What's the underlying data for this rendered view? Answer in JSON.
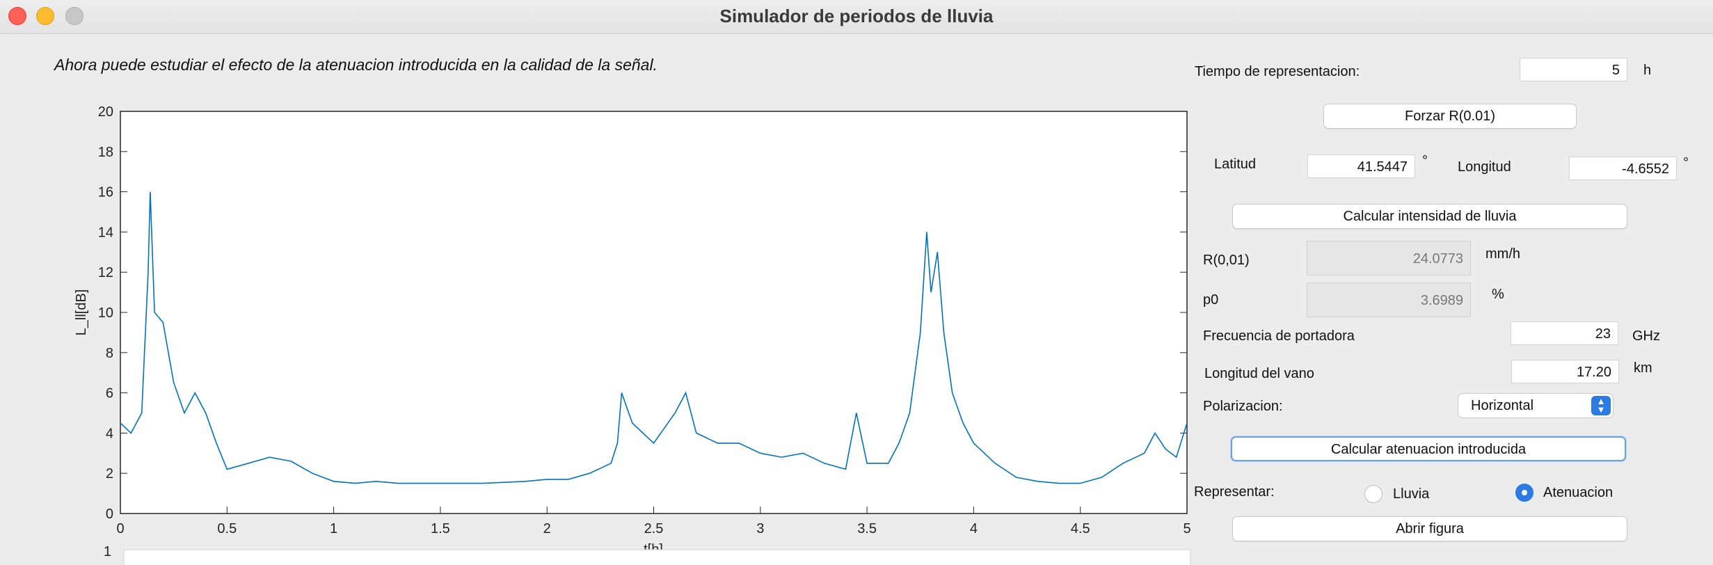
{
  "window": {
    "title": "Simulador de periodos de lluvia"
  },
  "instruction": "Ahora puede estudiar el efecto de la atenuacion introducida en la calidad de la señal.",
  "panel": {
    "tiempo": {
      "label": "Tiempo de representacion:",
      "value": "5",
      "unit": "h"
    },
    "forzar_button": "Forzar R(0.01)",
    "latitud": {
      "label": "Latitud",
      "value": "41.5447",
      "unit": "°"
    },
    "longitud": {
      "label": "Longitud",
      "value": "-4.6552",
      "unit": "°"
    },
    "calc_lluvia_button": "Calcular intensidad de lluvia",
    "r001": {
      "label": "R(0,01)",
      "value": "24.0773",
      "unit": "mm/h"
    },
    "p0": {
      "label": "p0",
      "value": "3.6989",
      "unit": "%"
    },
    "frecuencia": {
      "label": "Frecuencia de portadora",
      "value": "23",
      "unit": "GHz"
    },
    "longitud_vano": {
      "label": "Longitud del vano",
      "value": "17.20",
      "unit": "km"
    },
    "polarizacion": {
      "label": "Polarizacion:",
      "selected": "Horizontal"
    },
    "calc_atenuacion_button": "Calcular atenuacion introducida",
    "representar": {
      "label": "Representar:",
      "options": [
        {
          "label": "Lluvia",
          "selected": false
        },
        {
          "label": "Atenuacion",
          "selected": true
        }
      ]
    },
    "abrir_button": "Abrir figura"
  },
  "chart_data": {
    "type": "line",
    "xlabel": "t[h]",
    "ylabel": "L_ll[dB]",
    "xlim": [
      0,
      5
    ],
    "ylim": [
      0,
      20
    ],
    "xticks": [
      "0",
      "0.5",
      "1",
      "1.5",
      "2",
      "2.5",
      "3",
      "3.5",
      "4",
      "4.5",
      "5"
    ],
    "yticks": [
      "0",
      "2",
      "4",
      "6",
      "8",
      "10",
      "12",
      "14",
      "16",
      "18",
      "20"
    ],
    "line_color": "#0072bd",
    "series": [
      {
        "x": [
          0,
          0.05,
          0.1,
          0.13,
          0.14,
          0.16,
          0.2,
          0.25,
          0.3,
          0.35,
          0.4,
          0.45,
          0.5,
          0.6,
          0.7,
          0.8,
          0.9,
          1.0,
          1.1,
          1.2,
          1.3,
          1.5,
          1.7,
          1.9,
          2.0,
          2.1,
          2.2,
          2.3,
          2.33,
          2.35,
          2.4,
          2.5,
          2.6,
          2.65,
          2.7,
          2.8,
          2.9,
          3.0,
          3.1,
          3.2,
          3.3,
          3.4,
          3.45,
          3.5,
          3.6,
          3.65,
          3.7,
          3.75,
          3.78,
          3.8,
          3.83,
          3.86,
          3.9,
          3.95,
          4.0,
          4.05,
          4.1,
          4.2,
          4.3,
          4.4,
          4.5,
          4.6,
          4.7,
          4.8,
          4.85,
          4.9,
          4.95,
          5.0
        ],
        "y": [
          4.5,
          4.0,
          5.0,
          12.0,
          16.0,
          10.0,
          9.5,
          6.5,
          5.0,
          6.0,
          5.0,
          3.5,
          2.2,
          2.5,
          2.8,
          2.6,
          2.0,
          1.6,
          1.5,
          1.6,
          1.5,
          1.5,
          1.5,
          1.6,
          1.7,
          1.7,
          2.0,
          2.5,
          3.5,
          6.0,
          4.5,
          3.5,
          5.0,
          6.0,
          4.0,
          3.5,
          3.5,
          3.0,
          2.8,
          3.0,
          2.5,
          2.2,
          5.0,
          2.5,
          2.5,
          3.5,
          5.0,
          9.0,
          14.0,
          11.0,
          13.0,
          9.0,
          6.0,
          4.5,
          3.5,
          3.0,
          2.5,
          1.8,
          1.6,
          1.5,
          1.5,
          1.8,
          2.5,
          3.0,
          4.0,
          3.2,
          2.8,
          4.5
        ]
      }
    ]
  }
}
